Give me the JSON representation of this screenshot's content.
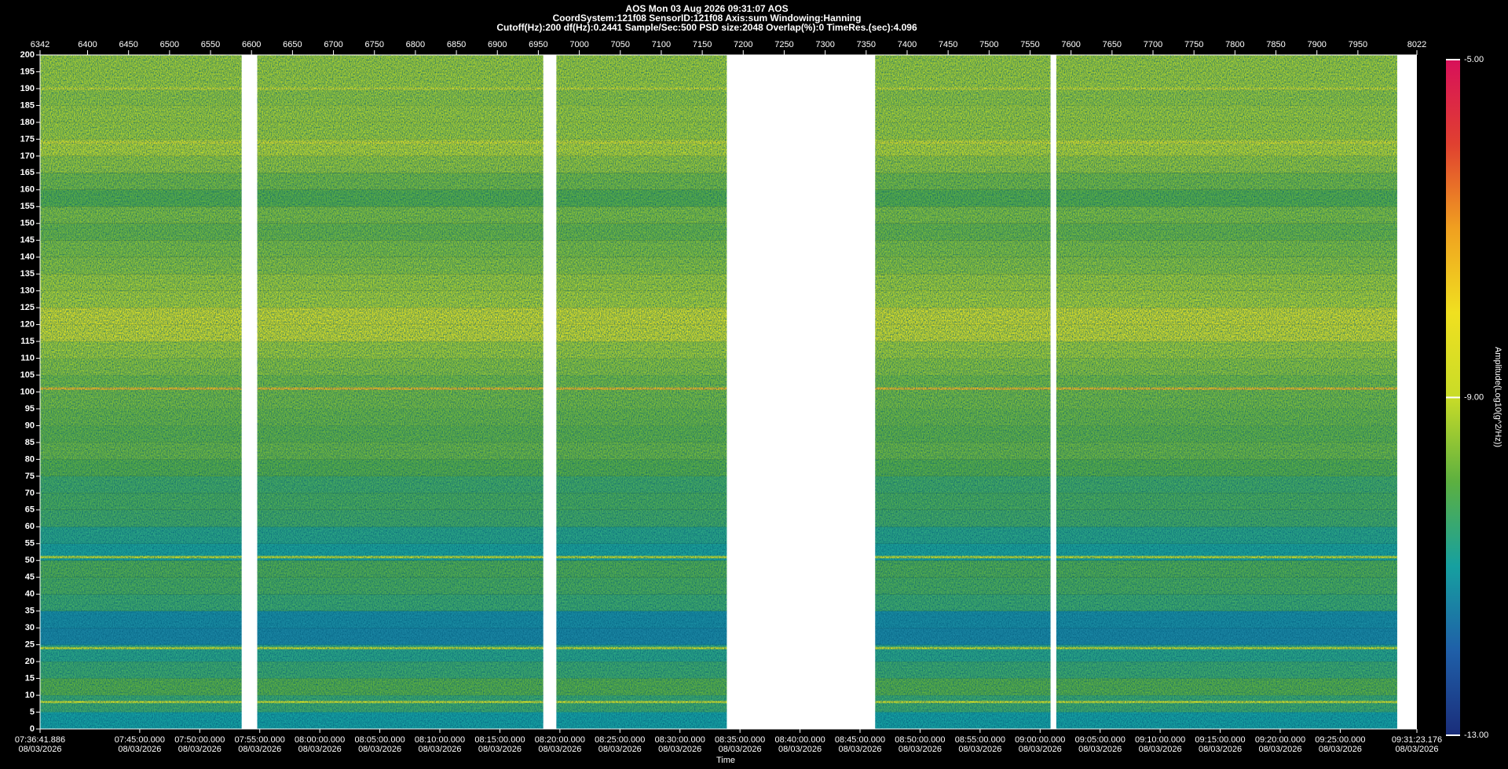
{
  "chart_data": {
    "type": "spectrogram",
    "title": "AOS  Mon 03 Aug 2026 09:31:07  AOS",
    "subtitle": "CoordSystem:121f08   SensorID:121f08   Axis:sum   Windowing:Hanning",
    "settings_line": "Cutoff(Hz):200   df(Hz):0.2441   Sample/Sec:500   PSD size:2048   Overlap(%):0   TimeRes.(sec):4.096",
    "xlabel": "Time",
    "colorbar_label": "Amplitude(Log10(g^2/Hz))",
    "xlim": [
      6342,
      8022
    ],
    "x2ticks": [
      6342,
      6400,
      6450,
      6500,
      6550,
      6600,
      6650,
      6700,
      6750,
      6800,
      6850,
      6900,
      6950,
      7000,
      7050,
      7100,
      7150,
      7200,
      7250,
      7300,
      7350,
      7400,
      7450,
      7500,
      7550,
      7600,
      7650,
      7700,
      7750,
      7800,
      7850,
      7900,
      7950,
      8022
    ],
    "xticks": [
      {
        "value": 6342,
        "label": "07:36:41.886",
        "date": "08/03/2026"
      },
      {
        "value": 6463.61,
        "label": "07:45:00.000",
        "date": "08/03/2026"
      },
      {
        "value": 6536.85,
        "label": "07:50:00.000",
        "date": "08/03/2026"
      },
      {
        "value": 6610.09,
        "label": "07:55:00.000",
        "date": "08/03/2026"
      },
      {
        "value": 6683.34,
        "label": "08:00:00.000",
        "date": "08/03/2026"
      },
      {
        "value": 6756.58,
        "label": "08:05:00.000",
        "date": "08/03/2026"
      },
      {
        "value": 6829.82,
        "label": "08:10:00.000",
        "date": "08/03/2026"
      },
      {
        "value": 6903.07,
        "label": "08:15:00.000",
        "date": "08/03/2026"
      },
      {
        "value": 6976.31,
        "label": "08:20:00.000",
        "date": "08/03/2026"
      },
      {
        "value": 7049.55,
        "label": "08:25:00.000",
        "date": "08/03/2026"
      },
      {
        "value": 7122.79,
        "label": "08:30:00.000",
        "date": "08/03/2026"
      },
      {
        "value": 7196.04,
        "label": "08:35:00.000",
        "date": "08/03/2026"
      },
      {
        "value": 7269.28,
        "label": "08:40:00.000",
        "date": "08/03/2026"
      },
      {
        "value": 7342.52,
        "label": "08:45:00.000",
        "date": "08/03/2026"
      },
      {
        "value": 7415.77,
        "label": "08:50:00.000",
        "date": "08/03/2026"
      },
      {
        "value": 7489.01,
        "label": "08:55:00.000",
        "date": "08/03/2026"
      },
      {
        "value": 7562.25,
        "label": "09:00:00.000",
        "date": "08/03/2026"
      },
      {
        "value": 7635.5,
        "label": "09:05:00.000",
        "date": "08/03/2026"
      },
      {
        "value": 7708.74,
        "label": "09:10:00.000",
        "date": "08/03/2026"
      },
      {
        "value": 7781.98,
        "label": "09:15:00.000",
        "date": "08/03/2026"
      },
      {
        "value": 7855.23,
        "label": "09:20:00.000",
        "date": "08/03/2026"
      },
      {
        "value": 7928.47,
        "label": "09:25:00.000",
        "date": "08/03/2026"
      },
      {
        "value": 8022,
        "label": "09:31:23.176",
        "date": "08/03/2026"
      }
    ],
    "ylim": [
      0,
      200
    ],
    "yticks": [
      0,
      5,
      10,
      15,
      20,
      25,
      30,
      35,
      40,
      45,
      50,
      55,
      60,
      65,
      70,
      75,
      80,
      85,
      90,
      95,
      100,
      105,
      110,
      115,
      120,
      125,
      130,
      135,
      140,
      145,
      150,
      155,
      160,
      165,
      170,
      175,
      180,
      185,
      190,
      195,
      200
    ],
    "clim": [
      -13,
      -5
    ],
    "cticks": [
      {
        "value": -13,
        "label": "-13.00"
      },
      {
        "value": -9,
        "label": "-9.00"
      },
      {
        "value": -5,
        "label": "-5.00"
      }
    ],
    "colormap": [
      "#1a2d7a",
      "#1f5fa8",
      "#16a0a0",
      "#5cb040",
      "#c8dc28",
      "#f0e020",
      "#f0a020",
      "#e04030",
      "#d8105a"
    ],
    "bands": {
      "edges": [
        0,
        5,
        10,
        15,
        20,
        25,
        30,
        35,
        40,
        45,
        50,
        55,
        60,
        65,
        70,
        75,
        80,
        85,
        90,
        95,
        100,
        105,
        110,
        115,
        120,
        125,
        130,
        135,
        140,
        145,
        150,
        155,
        160,
        165,
        170,
        175,
        180,
        185,
        190,
        195,
        200
      ],
      "values": [
        -11.0,
        -10.4,
        -10.0,
        -10.4,
        -10.7,
        -11.4,
        -11.3,
        -10.4,
        -10.2,
        -10.1,
        -10.9,
        -10.7,
        -10.3,
        -10.2,
        -10.3,
        -10.0,
        -9.8,
        -9.9,
        -9.8,
        -9.7,
        -9.7,
        -9.5,
        -9.3,
        -8.7,
        -8.6,
        -9.2,
        -9.3,
        -9.5,
        -9.6,
        -9.8,
        -9.6,
        -10.0,
        -9.7,
        -9.4,
        -9.1,
        -9.3,
        -9.3,
        -9.4,
        -9.3,
        -9.3
      ]
    },
    "lines": {
      "freq": [
        8,
        24,
        51,
        101,
        174,
        190
      ],
      "values": [
        -9.0,
        -9.0,
        -9.0,
        -7.4,
        -8.6,
        -8.8
      ]
    },
    "gaps": [
      [
        6588,
        6607
      ],
      [
        6956,
        6972
      ],
      [
        7180,
        7361
      ],
      [
        7575,
        7582
      ],
      [
        7998,
        8022
      ]
    ]
  }
}
